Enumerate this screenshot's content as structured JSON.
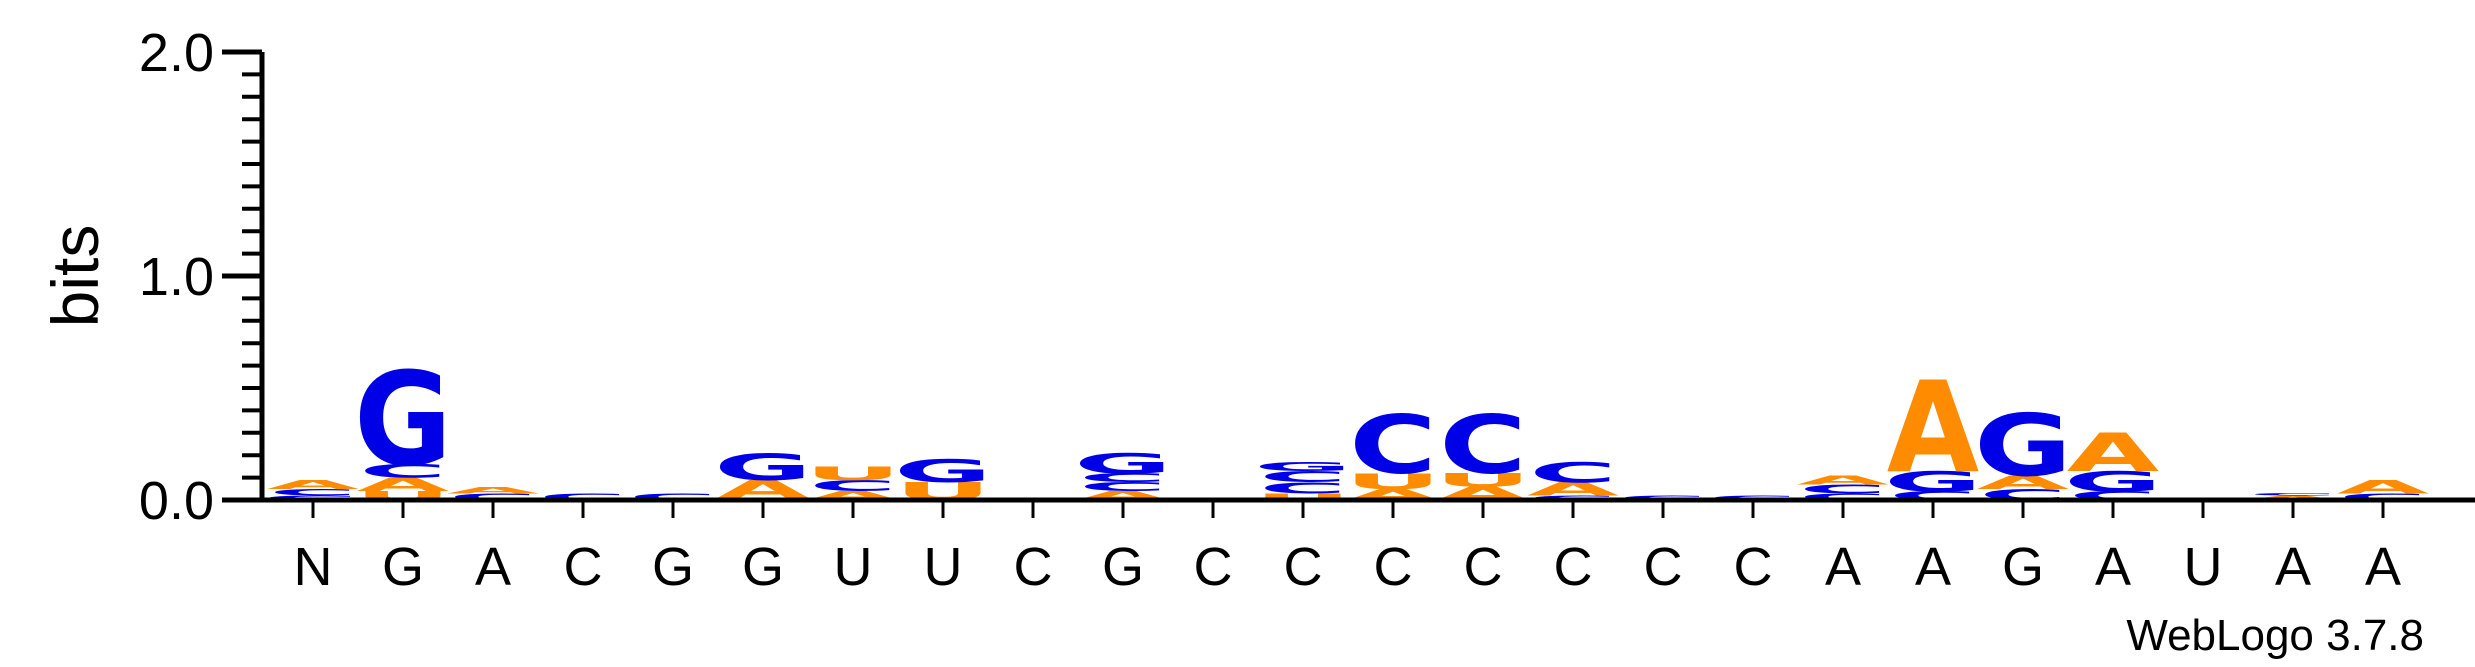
{
  "chart_data": {
    "type": "sequence-logo",
    "ylabel": "bits",
    "ylim": [
      0,
      2
    ],
    "yticks": [
      "0.0",
      "1.0",
      "2.0"
    ],
    "credit": "WebLogo 3.7.8",
    "colors": {
      "G": "#0000e6",
      "C": "#0000e6",
      "A": "#ff8c00",
      "U": "#ff8c00"
    },
    "positions": [
      {
        "label": "N",
        "stack": [
          {
            "letter": "G",
            "bits": 0.02
          },
          {
            "letter": "C",
            "bits": 0.03
          },
          {
            "letter": "A",
            "bits": 0.04
          }
        ]
      },
      {
        "label": "G",
        "stack": [
          {
            "letter": "U",
            "bits": 0.04
          },
          {
            "letter": "A",
            "bits": 0.06
          },
          {
            "letter": "C",
            "bits": 0.06
          },
          {
            "letter": "G",
            "bits": 0.42
          }
        ]
      },
      {
        "label": "A",
        "stack": [
          {
            "letter": "C",
            "bits": 0.03
          },
          {
            "letter": "A",
            "bits": 0.03
          }
        ]
      },
      {
        "label": "C",
        "stack": [
          {
            "letter": "C",
            "bits": 0.03
          }
        ]
      },
      {
        "label": "G",
        "stack": [
          {
            "letter": "C",
            "bits": 0.03
          }
        ]
      },
      {
        "label": "G",
        "stack": [
          {
            "letter": "U",
            "bits": 0.01
          },
          {
            "letter": "A",
            "bits": 0.08
          },
          {
            "letter": "G",
            "bits": 0.12
          }
        ]
      },
      {
        "label": "U",
        "stack": [
          {
            "letter": "A",
            "bits": 0.04
          },
          {
            "letter": "C",
            "bits": 0.05
          },
          {
            "letter": "U",
            "bits": 0.06
          }
        ]
      },
      {
        "label": "U",
        "stack": [
          {
            "letter": "U",
            "bits": 0.08
          },
          {
            "letter": "G",
            "bits": 0.1
          }
        ]
      },
      {
        "label": "C",
        "stack": [
          {
            "letter": "A",
            "bits": 0.01
          }
        ]
      },
      {
        "label": "G",
        "stack": [
          {
            "letter": "A",
            "bits": 0.04
          },
          {
            "letter": "C",
            "bits": 0.04
          },
          {
            "letter": "C",
            "bits": 0.04
          },
          {
            "letter": "G",
            "bits": 0.09
          }
        ]
      },
      {
        "label": "C",
        "stack": []
      },
      {
        "label": "C",
        "stack": [
          {
            "letter": "U",
            "bits": 0.03
          },
          {
            "letter": "C",
            "bits": 0.05
          },
          {
            "letter": "C",
            "bits": 0.05
          },
          {
            "letter": "G",
            "bits": 0.04
          }
        ]
      },
      {
        "label": "C",
        "stack": [
          {
            "letter": "A",
            "bits": 0.05
          },
          {
            "letter": "U",
            "bits": 0.07
          },
          {
            "letter": "C",
            "bits": 0.26
          }
        ]
      },
      {
        "label": "C",
        "stack": [
          {
            "letter": "A",
            "bits": 0.06
          },
          {
            "letter": "U",
            "bits": 0.06
          },
          {
            "letter": "C",
            "bits": 0.26
          }
        ]
      },
      {
        "label": "C",
        "stack": [
          {
            "letter": "C",
            "bits": 0.02
          },
          {
            "letter": "A",
            "bits": 0.06
          },
          {
            "letter": "C",
            "bits": 0.09
          }
        ]
      },
      {
        "label": "C",
        "stack": [
          {
            "letter": "C",
            "bits": 0.02
          }
        ]
      },
      {
        "label": "C",
        "stack": [
          {
            "letter": "C",
            "bits": 0.02
          }
        ]
      },
      {
        "label": "A",
        "stack": [
          {
            "letter": "C",
            "bits": 0.03
          },
          {
            "letter": "C",
            "bits": 0.04
          },
          {
            "letter": "A",
            "bits": 0.04
          }
        ]
      },
      {
        "label": "A",
        "stack": [
          {
            "letter": "C",
            "bits": 0.04
          },
          {
            "letter": "G",
            "bits": 0.09
          },
          {
            "letter": "A",
            "bits": 0.41
          }
        ]
      },
      {
        "label": "G",
        "stack": [
          {
            "letter": "C",
            "bits": 0.05
          },
          {
            "letter": "A",
            "bits": 0.06
          },
          {
            "letter": "G",
            "bits": 0.28
          }
        ]
      },
      {
        "label": "A",
        "stack": [
          {
            "letter": "C",
            "bits": 0.04
          },
          {
            "letter": "G",
            "bits": 0.09
          },
          {
            "letter": "A",
            "bits": 0.17
          }
        ]
      },
      {
        "label": "U",
        "stack": []
      },
      {
        "label": "A",
        "stack": [
          {
            "letter": "A",
            "bits": 0.02
          },
          {
            "letter": "C",
            "bits": 0.01
          }
        ]
      },
      {
        "label": "A",
        "stack": [
          {
            "letter": "C",
            "bits": 0.03
          },
          {
            "letter": "A",
            "bits": 0.06
          }
        ]
      }
    ]
  }
}
